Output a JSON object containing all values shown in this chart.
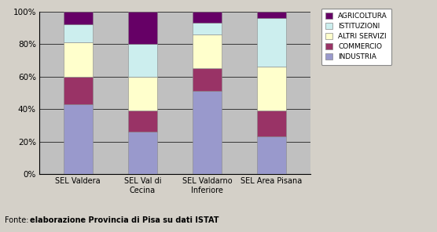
{
  "categories": [
    "SEL Valdera",
    "SEL Val di\nCecina",
    "SEL Valdarno\nInferiore",
    "SEL Area Pisana"
  ],
  "series": {
    "INDUSTRIA": [
      43,
      26,
      51,
      23
    ],
    "COMMERCIO": [
      17,
      13,
      14,
      16
    ],
    "ALTRI SERVIZI": [
      21,
      21,
      21,
      27
    ],
    "ISTITUZIONI": [
      11,
      20,
      7,
      30
    ],
    "AGRICOLTURA": [
      8,
      20,
      7,
      4
    ]
  },
  "colors": {
    "INDUSTRIA": "#9999cc",
    "COMMERCIO": "#993366",
    "ALTRI SERVIZI": "#ffffcc",
    "ISTITUZIONI": "#cceeee",
    "AGRICOLTURA": "#660066"
  },
  "bg_color": "#d4d0c8",
  "plot_bg_color": "#c0c0c0",
  "yticks": [
    0,
    20,
    40,
    60,
    80,
    100
  ],
  "ytick_labels": [
    "0%",
    "20%",
    "40%",
    "60%",
    "80%",
    "100%"
  ],
  "legend_order": [
    "AGRICOLTURA",
    "ISTITUZIONI",
    "ALTRI SERVIZI",
    "COMMERCIO",
    "INDUSTRIA"
  ],
  "footer_normal": "Fonte: ",
  "footer_bold": "elaborazione Provincia di Pisa su dati ISTAT",
  "bar_width": 0.45
}
